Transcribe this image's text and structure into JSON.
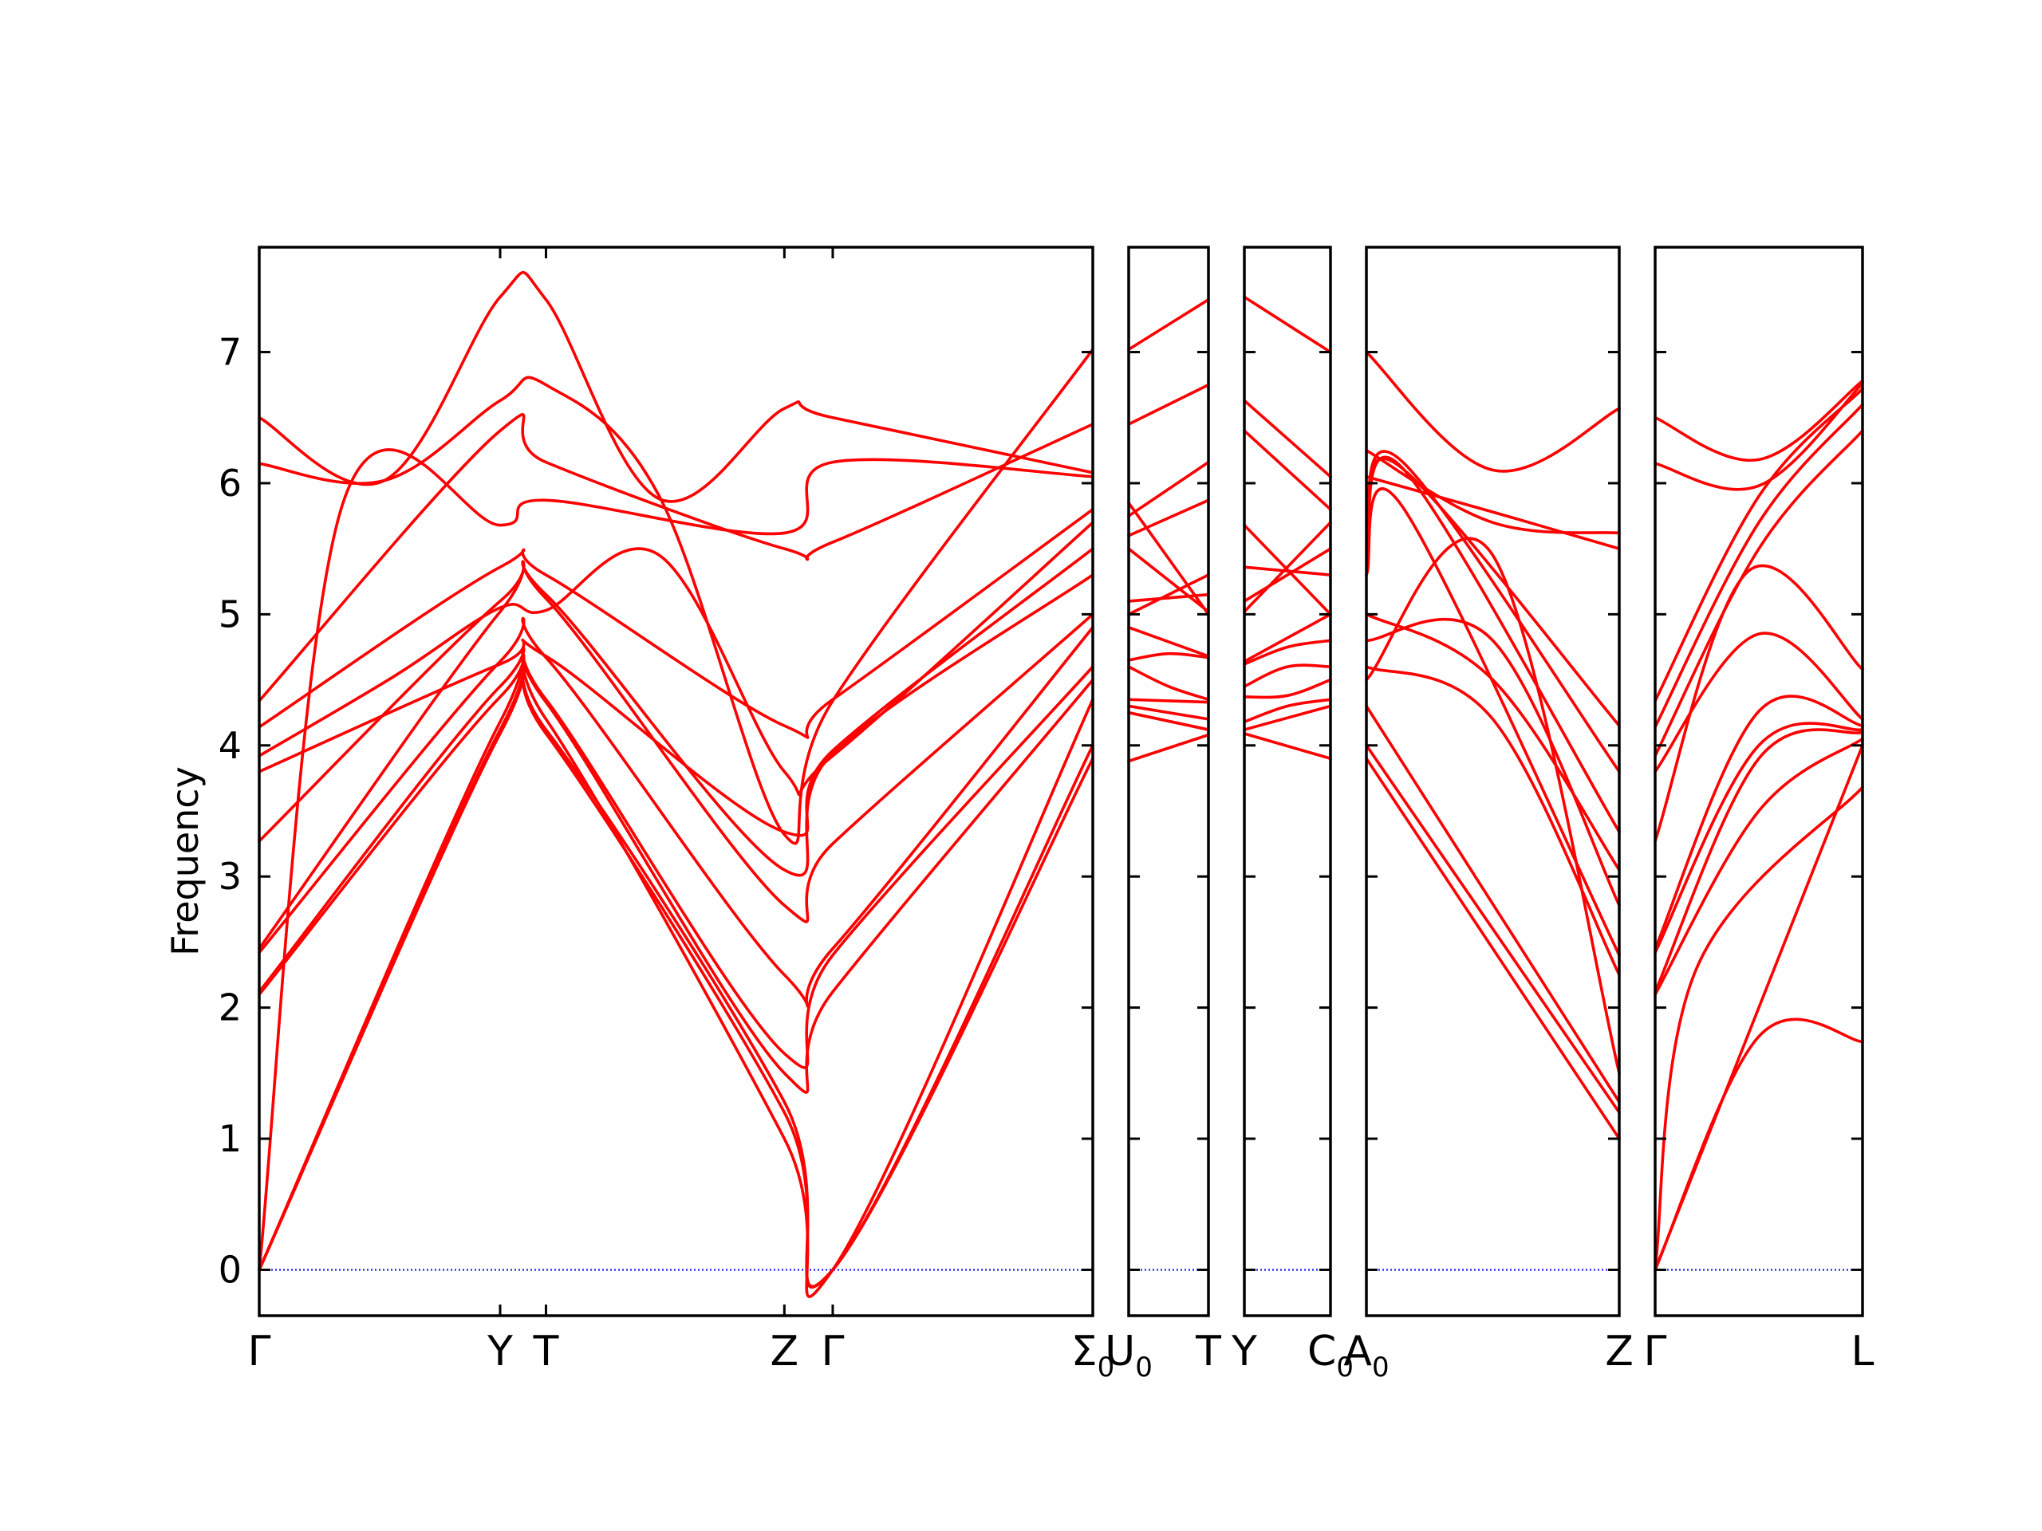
{
  "chart_data": {
    "type": "line",
    "ylabel": "Frequency",
    "ylim": [
      -0.35,
      7.8
    ],
    "yticks": [
      "0",
      "1",
      "2",
      "3",
      "4",
      "5",
      "6",
      "7"
    ],
    "zero_line": true,
    "colors": {
      "bands": "#ff0000",
      "zero_line": "#0000ff",
      "axes": "#000000"
    },
    "panels": [
      {
        "x_labels": [
          {
            "sym": "Γ",
            "sub": ""
          },
          {
            "sym": "Y",
            "sub": ""
          },
          {
            "sym": "T",
            "sub": ""
          },
          {
            "sym": "Z",
            "sub": ""
          },
          {
            "sym": "Γ",
            "sub": ""
          },
          {
            "sym": "Σ",
            "sub": "0"
          }
        ],
        "x": [
          0,
          0.289,
          0.344,
          0.63,
          0.688,
          1
        ],
        "series": [
          {
            "x": [
              0,
              0.289,
              0.344,
              0.63,
              0.688,
              1
            ],
            "values": [
              0,
              4.09,
              4.09,
              1.2,
              0,
              3.9
            ]
          },
          {
            "x": [
              0,
              0.289,
              0.344,
              0.63,
              0.688,
              1
            ],
            "values": [
              0,
              4.12,
              4.12,
              1.28,
              0,
              4.0
            ]
          },
          {
            "x": [
              0,
              0.289,
              0.344,
              0.63,
              0.688,
              1
            ],
            "values": [
              0,
              4.18,
              4.2,
              1.0,
              0,
              4.35
            ]
          },
          {
            "x": [
              0,
              0.1,
              0.289,
              0.344,
              0.63,
              0.688,
              1
            ],
            "values": [
              0,
              5.84,
              5.68,
              5.87,
              5.62,
              6.16,
              6.05
            ]
          },
          {
            "x": [
              0,
              0.289,
              0.344,
              0.63,
              0.688,
              1
            ],
            "values": [
              2.1,
              4.37,
              4.33,
              1.5,
              2.12,
              4.5
            ]
          },
          {
            "x": [
              0,
              0.289,
              0.344,
              0.63,
              0.688,
              1
            ],
            "values": [
              2.12,
              4.45,
              4.35,
              1.65,
              2.4,
              4.6
            ]
          },
          {
            "x": [
              0,
              0.289,
              0.344,
              0.63,
              0.688,
              1
            ],
            "values": [
              2.42,
              4.64,
              4.67,
              2.25,
              2.45,
              4.9
            ]
          },
          {
            "x": [
              0,
              0.289,
              0.344,
              0.63,
              0.688,
              1
            ],
            "values": [
              2.45,
              5.02,
              5.12,
              2.78,
              3.25,
              5.0
            ]
          },
          {
            "x": [
              0,
              0.289,
              0.344,
              0.63,
              0.688,
              1
            ],
            "values": [
              3.27,
              5.1,
              5.15,
              3.05,
              3.94,
              5.3
            ]
          },
          {
            "x": [
              0,
              0.289,
              0.344,
              0.63,
              0.688,
              1
            ],
            "values": [
              3.8,
              4.62,
              4.68,
              3.34,
              3.96,
              5.5
            ]
          },
          {
            "x": [
              0,
              0.16,
              0.289,
              0.344,
              0.48,
              0.63,
              0.688,
              1
            ],
            "values": [
              3.92,
              4.52,
              5.05,
              5.03,
              5.45,
              3.8,
              3.92,
              5.7
            ]
          },
          {
            "x": [
              0,
              0.289,
              0.344,
              0.63,
              0.688,
              1
            ],
            "values": [
              4.14,
              5.36,
              5.3,
              4.15,
              4.35,
              5.8
            ]
          },
          {
            "x": [
              0,
              0.289,
              0.344,
              0.63,
              0.688,
              1
            ],
            "values": [
              4.34,
              6.4,
              6.16,
              5.5,
              5.55,
              6.45
            ]
          },
          {
            "x": [
              0,
              0.15,
              0.289,
              0.344,
              0.48,
              0.63,
              0.688,
              1
            ],
            "values": [
              6.15,
              6.02,
              6.63,
              6.75,
              5.9,
              3.32,
              4.34,
              7.02
            ]
          },
          {
            "x": [
              0,
              0.15,
              0.289,
              0.344,
              0.48,
              0.63,
              0.688,
              1
            ],
            "values": [
              6.5,
              6.02,
              7.42,
              7.4,
              5.88,
              6.57,
              6.5,
              6.08
            ]
          }
        ]
      },
      {
        "x_labels": [
          {
            "sym": "U",
            "sub": "0"
          },
          {
            "sym": "T",
            "sub": ""
          }
        ],
        "x": [
          0,
          1
        ],
        "series": [
          {
            "x": [
              0,
              1
            ],
            "values": [
              3.88,
              4.08
            ]
          },
          {
            "x": [
              0,
              1
            ],
            "values": [
              4.25,
              4.12
            ]
          },
          {
            "x": [
              0,
              1
            ],
            "values": [
              4.3,
              4.2
            ]
          },
          {
            "x": [
              0,
              1
            ],
            "values": [
              4.35,
              4.33
            ]
          },
          {
            "x": [
              0,
              0.5,
              1
            ],
            "values": [
              4.6,
              4.45,
              4.35
            ]
          },
          {
            "x": [
              0,
              0.5,
              1
            ],
            "values": [
              4.65,
              4.7,
              4.67
            ]
          },
          {
            "x": [
              0,
              1
            ],
            "values": [
              4.9,
              4.68
            ]
          },
          {
            "x": [
              0,
              1
            ],
            "values": [
              5.0,
              5.3
            ]
          },
          {
            "x": [
              0,
              1
            ],
            "values": [
              5.1,
              5.15
            ]
          },
          {
            "x": [
              0,
              1
            ],
            "values": [
              5.5,
              5.02
            ]
          },
          {
            "x": [
              0,
              1
            ],
            "values": [
              5.6,
              5.87
            ]
          },
          {
            "x": [
              0,
              1
            ],
            "values": [
              5.75,
              6.16
            ]
          },
          {
            "x": [
              0,
              1
            ],
            "values": [
              6.45,
              6.75
            ]
          },
          {
            "x": [
              0,
              1
            ],
            "values": [
              7.02,
              7.4
            ]
          },
          {
            "x": [
              0,
              1
            ],
            "values": [
              5.85,
              5.0
            ]
          }
        ]
      },
      {
        "x_labels": [
          {
            "sym": "Y",
            "sub": ""
          },
          {
            "sym": "C",
            "sub": "0"
          }
        ],
        "x": [
          0,
          1
        ],
        "series": [
          {
            "x": [
              0,
              1
            ],
            "values": [
              4.09,
              3.9
            ]
          },
          {
            "x": [
              0,
              1
            ],
            "values": [
              4.12,
              4.3
            ]
          },
          {
            "x": [
              0,
              0.5,
              1
            ],
            "values": [
              4.18,
              4.3,
              4.35
            ]
          },
          {
            "x": [
              0,
              0.5,
              1
            ],
            "values": [
              4.37,
              4.38,
              4.5
            ]
          },
          {
            "x": [
              0,
              0.5,
              1
            ],
            "values": [
              4.45,
              4.6,
              4.6
            ]
          },
          {
            "x": [
              0,
              0.5,
              1
            ],
            "values": [
              4.62,
              4.75,
              4.8
            ]
          },
          {
            "x": [
              0,
              1
            ],
            "values": [
              4.64,
              5.0
            ]
          },
          {
            "x": [
              0,
              1
            ],
            "values": [
              5.02,
              5.7
            ]
          },
          {
            "x": [
              0,
              1
            ],
            "values": [
              5.1,
              5.5
            ]
          },
          {
            "x": [
              0,
              1
            ],
            "values": [
              5.36,
              5.3
            ]
          },
          {
            "x": [
              0,
              1
            ],
            "values": [
              5.68,
              5.0
            ]
          },
          {
            "x": [
              0,
              1
            ],
            "values": [
              6.4,
              5.8
            ]
          },
          {
            "x": [
              0,
              1
            ],
            "values": [
              6.63,
              6.05
            ]
          },
          {
            "x": [
              0,
              1
            ],
            "values": [
              7.42,
              7.0
            ]
          }
        ]
      },
      {
        "x_labels": [
          {
            "sym": "A",
            "sub": "0"
          },
          {
            "sym": "Z",
            "sub": ""
          }
        ],
        "x": [
          0,
          0.15,
          1
        ],
        "series": [
          {
            "x": [
              0,
              1
            ],
            "values": [
              3.9,
              1.0
            ]
          },
          {
            "x": [
              0,
              1
            ],
            "values": [
              4.0,
              1.2
            ]
          },
          {
            "x": [
              0,
              1
            ],
            "values": [
              4.3,
              1.28
            ]
          },
          {
            "x": [
              0,
              0.5,
              1
            ],
            "values": [
              4.5,
              5.45,
              1.5
            ]
          },
          {
            "x": [
              0,
              0.5,
              1
            ],
            "values": [
              4.6,
              4.2,
              2.25
            ]
          },
          {
            "x": [
              0,
              0.5,
              1
            ],
            "values": [
              4.8,
              4.8,
              2.78
            ]
          },
          {
            "x": [
              0,
              0.5,
              1
            ],
            "values": [
              5.0,
              4.5,
              3.05
            ]
          },
          {
            "x": [
              0,
              0.15,
              1
            ],
            "values": [
              5.3,
              5.8,
              2.4
            ]
          },
          {
            "x": [
              0,
              0.15,
              1
            ],
            "values": [
              5.5,
              6.1,
              3.34
            ]
          },
          {
            "x": [
              0,
              0.15,
              1
            ],
            "values": [
              5.7,
              6.15,
              3.8
            ]
          },
          {
            "x": [
              0,
              0.15,
              1
            ],
            "values": [
              5.8,
              6.1,
              4.15
            ]
          },
          {
            "x": [
              0,
              0.5,
              1
            ],
            "values": [
              6.05,
              5.78,
              5.5
            ]
          },
          {
            "x": [
              0,
              0.5,
              1
            ],
            "values": [
              6.25,
              5.7,
              5.62
            ]
          },
          {
            "x": [
              0,
              0.5,
              1
            ],
            "values": [
              7.0,
              6.1,
              6.57
            ]
          }
        ]
      },
      {
        "x_labels": [
          {
            "sym": "Γ",
            "sub": ""
          },
          {
            "sym": "L",
            "sub": ""
          }
        ],
        "x": [
          0,
          1
        ],
        "series": [
          {
            "x": [
              0,
              0.5,
              1
            ],
            "values": [
              0,
              1.78,
              1.74
            ]
          },
          {
            "x": [
              0,
              0.2,
              1
            ],
            "values": [
              0,
              2.3,
              3.68
            ]
          },
          {
            "x": [
              0,
              1
            ],
            "values": [
              0,
              4.0
            ]
          },
          {
            "x": [
              0,
              0.5,
              1
            ],
            "values": [
              2.1,
              3.5,
              4.05
            ]
          },
          {
            "x": [
              0,
              0.5,
              1
            ],
            "values": [
              2.12,
              3.9,
              4.1
            ]
          },
          {
            "x": [
              0,
              0.5,
              1
            ],
            "values": [
              2.42,
              4.0,
              4.12
            ]
          },
          {
            "x": [
              0,
              0.5,
              1
            ],
            "values": [
              2.45,
              4.26,
              4.15
            ]
          },
          {
            "x": [
              0,
              0.45,
              1
            ],
            "values": [
              3.27,
              5.33,
              4.58
            ]
          },
          {
            "x": [
              0,
              0.5,
              1
            ],
            "values": [
              3.8,
              4.85,
              4.2
            ]
          },
          {
            "x": [
              0,
              0.5,
              1
            ],
            "values": [
              3.92,
              5.5,
              6.4
            ]
          },
          {
            "x": [
              0,
              0.5,
              1
            ],
            "values": [
              4.14,
              5.7,
              6.6
            ]
          },
          {
            "x": [
              0,
              0.5,
              1
            ],
            "values": [
              4.34,
              5.9,
              6.72
            ]
          },
          {
            "x": [
              0,
              0.5,
              1
            ],
            "values": [
              6.15,
              5.98,
              6.76
            ]
          },
          {
            "x": [
              0,
              0.5,
              1
            ],
            "values": [
              6.5,
              6.18,
              6.78
            ]
          }
        ]
      }
    ]
  }
}
